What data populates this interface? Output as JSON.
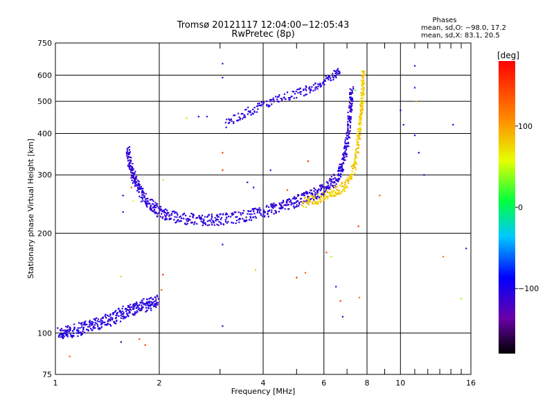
{
  "chart_data": {
    "type": "scatter",
    "title": "Tromsø 20121117 12:04:00−12:05:43",
    "subtitle": "RwPretec (8p)",
    "xlabel": "Frequency [MHz]",
    "ylabel": "Stationary phase Virtual Height [km]",
    "x_scale": "log",
    "y_scale": "log",
    "xlim": [
      1,
      16
    ],
    "ylim": [
      75,
      750
    ],
    "x_ticks": [
      1,
      2,
      4,
      6,
      8,
      10,
      16
    ],
    "x_tick_labels": [
      "1",
      "2",
      "4",
      "6",
      "8",
      "10",
      "16"
    ],
    "x_minor_ticks": [
      3,
      5,
      7,
      9,
      11,
      12,
      13,
      14,
      15
    ],
    "y_ticks": [
      75,
      100,
      200,
      300,
      400,
      500,
      600,
      750
    ],
    "y_tick_labels": [
      "75",
      "100",
      "200",
      "300",
      "400",
      "500",
      "600",
      "750"
    ],
    "grid": true,
    "stats": {
      "heading": "Phases",
      "line_o": "mean, sd,O: −98.0, 17.2",
      "line_x": "mean, sd,X: 83.1, 20.5"
    },
    "colorbar": {
      "label": "[deg]",
      "range": [
        -180,
        180
      ],
      "tick_values": [
        100,
        0,
        -100
      ],
      "tick_labels": [
        "100",
        "0",
        "−100"
      ],
      "colormap": "rainbow"
    },
    "traces": [
      {
        "points": [
          [
            1.02,
            100
          ],
          [
            1.06,
            100
          ],
          [
            1.1,
            101
          ],
          [
            1.15,
            102
          ],
          [
            1.2,
            104
          ],
          [
            1.26,
            106
          ],
          [
            1.32,
            107
          ],
          [
            1.38,
            108
          ],
          [
            1.44,
            110
          ],
          [
            1.5,
            112
          ],
          [
            1.56,
            115
          ],
          [
            1.62,
            117
          ],
          [
            1.68,
            118
          ],
          [
            1.74,
            120
          ],
          [
            1.8,
            121
          ],
          [
            1.86,
            122
          ],
          [
            1.92,
            123
          ],
          [
            1.98,
            125
          ]
        ],
        "phase": -105,
        "spread": 0.045,
        "density": 7
      },
      {
        "points": [
          [
            1.62,
            355
          ],
          [
            1.64,
            330
          ],
          [
            1.67,
            305
          ],
          [
            1.7,
            290
          ],
          [
            1.74,
            275
          ],
          [
            1.8,
            258
          ],
          [
            1.88,
            245
          ],
          [
            1.96,
            236
          ],
          [
            2.06,
            229
          ],
          [
            2.2,
            224
          ],
          [
            2.4,
            221
          ],
          [
            2.6,
            220
          ],
          [
            2.8,
            219
          ],
          [
            3.0,
            220
          ],
          [
            3.3,
            223
          ],
          [
            3.6,
            226
          ],
          [
            3.9,
            230
          ],
          [
            4.2,
            235
          ],
          [
            4.5,
            240
          ],
          [
            4.8,
            246
          ],
          [
            5.1,
            252
          ],
          [
            5.4,
            258
          ],
          [
            5.7,
            265
          ],
          [
            6.0,
            272
          ],
          [
            6.3,
            282
          ],
          [
            6.6,
            298
          ],
          [
            6.8,
            320
          ],
          [
            6.95,
            355
          ],
          [
            7.05,
            400
          ],
          [
            7.12,
            450
          ],
          [
            7.18,
            500
          ],
          [
            7.22,
            540
          ]
        ],
        "phase": -108,
        "spread": 0.04,
        "density": 9
      },
      {
        "points": [
          [
            5.2,
            246
          ],
          [
            5.6,
            252
          ],
          [
            6.0,
            258
          ],
          [
            6.4,
            266
          ],
          [
            6.8,
            275
          ],
          [
            7.1,
            290
          ],
          [
            7.35,
            320
          ],
          [
            7.5,
            360
          ],
          [
            7.6,
            400
          ],
          [
            7.68,
            450
          ],
          [
            7.74,
            500
          ],
          [
            7.78,
            560
          ],
          [
            7.8,
            620
          ]
        ],
        "phase": 80,
        "spread": 0.035,
        "density": 9
      },
      {
        "points": [
          [
            3.1,
            430
          ],
          [
            3.4,
            450
          ],
          [
            3.7,
            470
          ],
          [
            4.0,
            488
          ],
          [
            4.4,
            505
          ],
          [
            4.8,
            520
          ],
          [
            5.2,
            535
          ],
          [
            5.6,
            552
          ],
          [
            6.0,
            572
          ],
          [
            6.4,
            600
          ],
          [
            6.7,
            625
          ]
        ],
        "phase": -108,
        "spread": 0.03,
        "density": 6
      }
    ],
    "scattered_points": [
      [
        3.05,
        650,
        -110
      ],
      [
        3.05,
        590,
        -100
      ],
      [
        3.05,
        350,
        150
      ],
      [
        3.05,
        310,
        160
      ],
      [
        3.05,
        185,
        -105
      ],
      [
        3.05,
        105,
        -115
      ],
      [
        2.6,
        450,
        -100
      ],
      [
        2.4,
        445,
        80
      ],
      [
        2.75,
        450,
        -110
      ],
      [
        1.57,
        260,
        -105
      ],
      [
        1.57,
        232,
        -110
      ],
      [
        1.66,
        275,
        140
      ],
      [
        1.68,
        250,
        60
      ],
      [
        2.05,
        290,
        40
      ],
      [
        2.05,
        150,
        160
      ],
      [
        2.03,
        135,
        130
      ],
      [
        1.55,
        148,
        40
      ],
      [
        1.55,
        94,
        -110
      ],
      [
        1.75,
        96,
        140
      ],
      [
        1.82,
        92,
        150
      ],
      [
        1.1,
        85,
        130
      ],
      [
        3.6,
        285,
        -110
      ],
      [
        3.75,
        275,
        -105
      ],
      [
        3.8,
        155,
        80
      ],
      [
        4.2,
        310,
        -100
      ],
      [
        4.7,
        270,
        140
      ],
      [
        5.0,
        147,
        160
      ],
      [
        5.3,
        152,
        130
      ],
      [
        5.4,
        330,
        160
      ],
      [
        6.1,
        175,
        140
      ],
      [
        6.3,
        170,
        40
      ],
      [
        6.5,
        138,
        -110
      ],
      [
        6.7,
        125,
        150
      ],
      [
        6.8,
        112,
        -105
      ],
      [
        7.4,
        540,
        20
      ],
      [
        7.55,
        210,
        160
      ],
      [
        7.6,
        128,
        120
      ],
      [
        8.7,
        260,
        140
      ],
      [
        10.0,
        470,
        -100
      ],
      [
        10.2,
        425,
        -110
      ],
      [
        11.0,
        640,
        -110
      ],
      [
        11.0,
        550,
        -80
      ],
      [
        11.3,
        350,
        -90
      ],
      [
        11.7,
        300,
        -100
      ],
      [
        14.2,
        425,
        -100
      ],
      [
        13.3,
        170,
        120
      ],
      [
        15.0,
        127,
        40
      ],
      [
        15.5,
        180,
        -110
      ],
      [
        11.0,
        395,
        -100
      ],
      [
        11.1,
        500,
        100
      ]
    ]
  }
}
